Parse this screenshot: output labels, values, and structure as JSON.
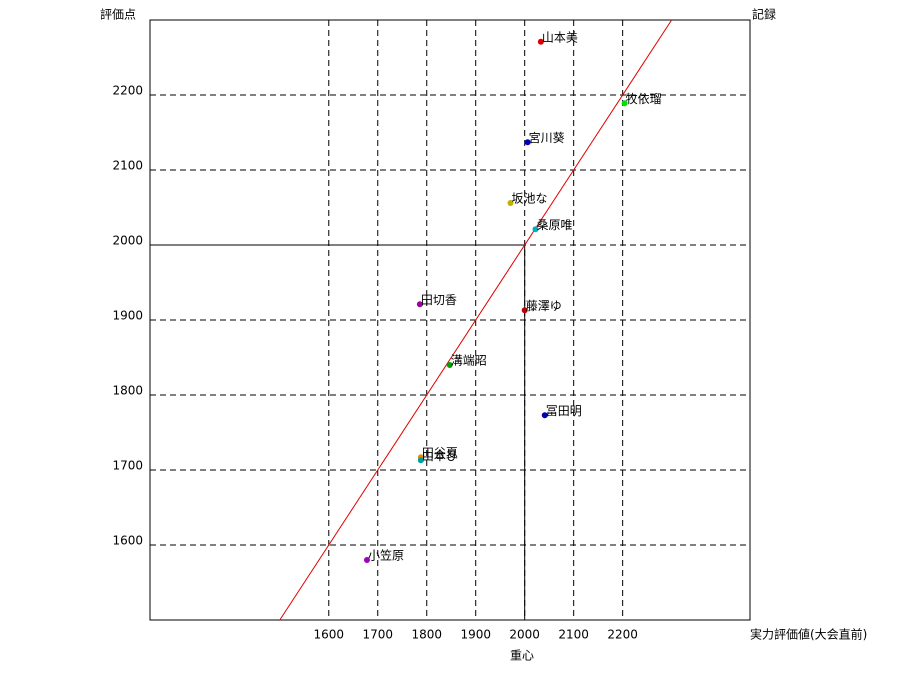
{
  "chart_data": {
    "type": "scatter",
    "y_label": "評価点",
    "y2_label": "記録",
    "x_label": "実力評価値(大会直前)",
    "center_label": "重心",
    "xlim": [
      1235,
      2460
    ],
    "ylim": [
      1500,
      2300
    ],
    "xticks": [
      1600,
      1700,
      1800,
      1900,
      2000,
      2100,
      2200
    ],
    "yticks": [
      1600,
      1700,
      1800,
      1900,
      2000,
      2100,
      2200
    ],
    "grid": true,
    "diagonal": true,
    "diagonal_color": "#e00000",
    "center": {
      "x": 2000,
      "y": 2000
    },
    "points": [
      {
        "label": "山本美",
        "x": 2033,
        "y": 2271,
        "color": "#e00000"
      },
      {
        "label": "牧依瑠",
        "x": 2204,
        "y": 2189,
        "color": "#00e000"
      },
      {
        "label": "宮川葵",
        "x": 2006,
        "y": 2137,
        "color": "#0000c0"
      },
      {
        "label": "坂池な",
        "x": 1971,
        "y": 2056,
        "color": "#c0b000"
      },
      {
        "label": "桑原唯",
        "x": 2022,
        "y": 2021,
        "color": "#00b0c0"
      },
      {
        "label": "田切香",
        "x": 1786,
        "y": 1921,
        "color": "#a000a0"
      },
      {
        "label": "藤澤ゆ",
        "x": 2000,
        "y": 1913,
        "color": "#c00000"
      },
      {
        "label": "溝端昭",
        "x": 1847,
        "y": 1840,
        "color": "#00a000"
      },
      {
        "label": "冨田明",
        "x": 2041,
        "y": 1773,
        "color": "#0000b0"
      },
      {
        "label": "田谷夏",
        "x": 1788,
        "y": 1717,
        "color": "#e09000"
      },
      {
        "label": "山本ひ",
        "x": 1788,
        "y": 1713,
        "color": "#00a0a0"
      },
      {
        "label": "小笠原",
        "x": 1678,
        "y": 1580,
        "color": "#a000c0"
      }
    ]
  }
}
